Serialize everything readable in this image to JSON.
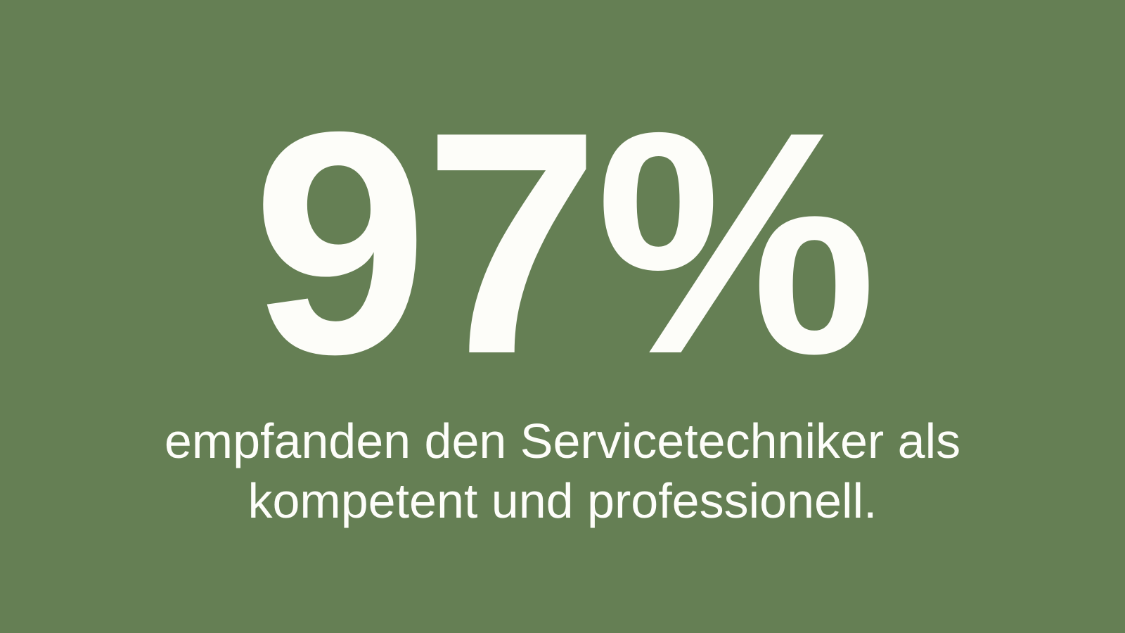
{
  "slide": {
    "background_color": "#657f54",
    "text_color": "#fdfdf9",
    "stat_value": "97%",
    "stat_description": "empfanden den Servicetechniker als kompetent und professionell."
  }
}
